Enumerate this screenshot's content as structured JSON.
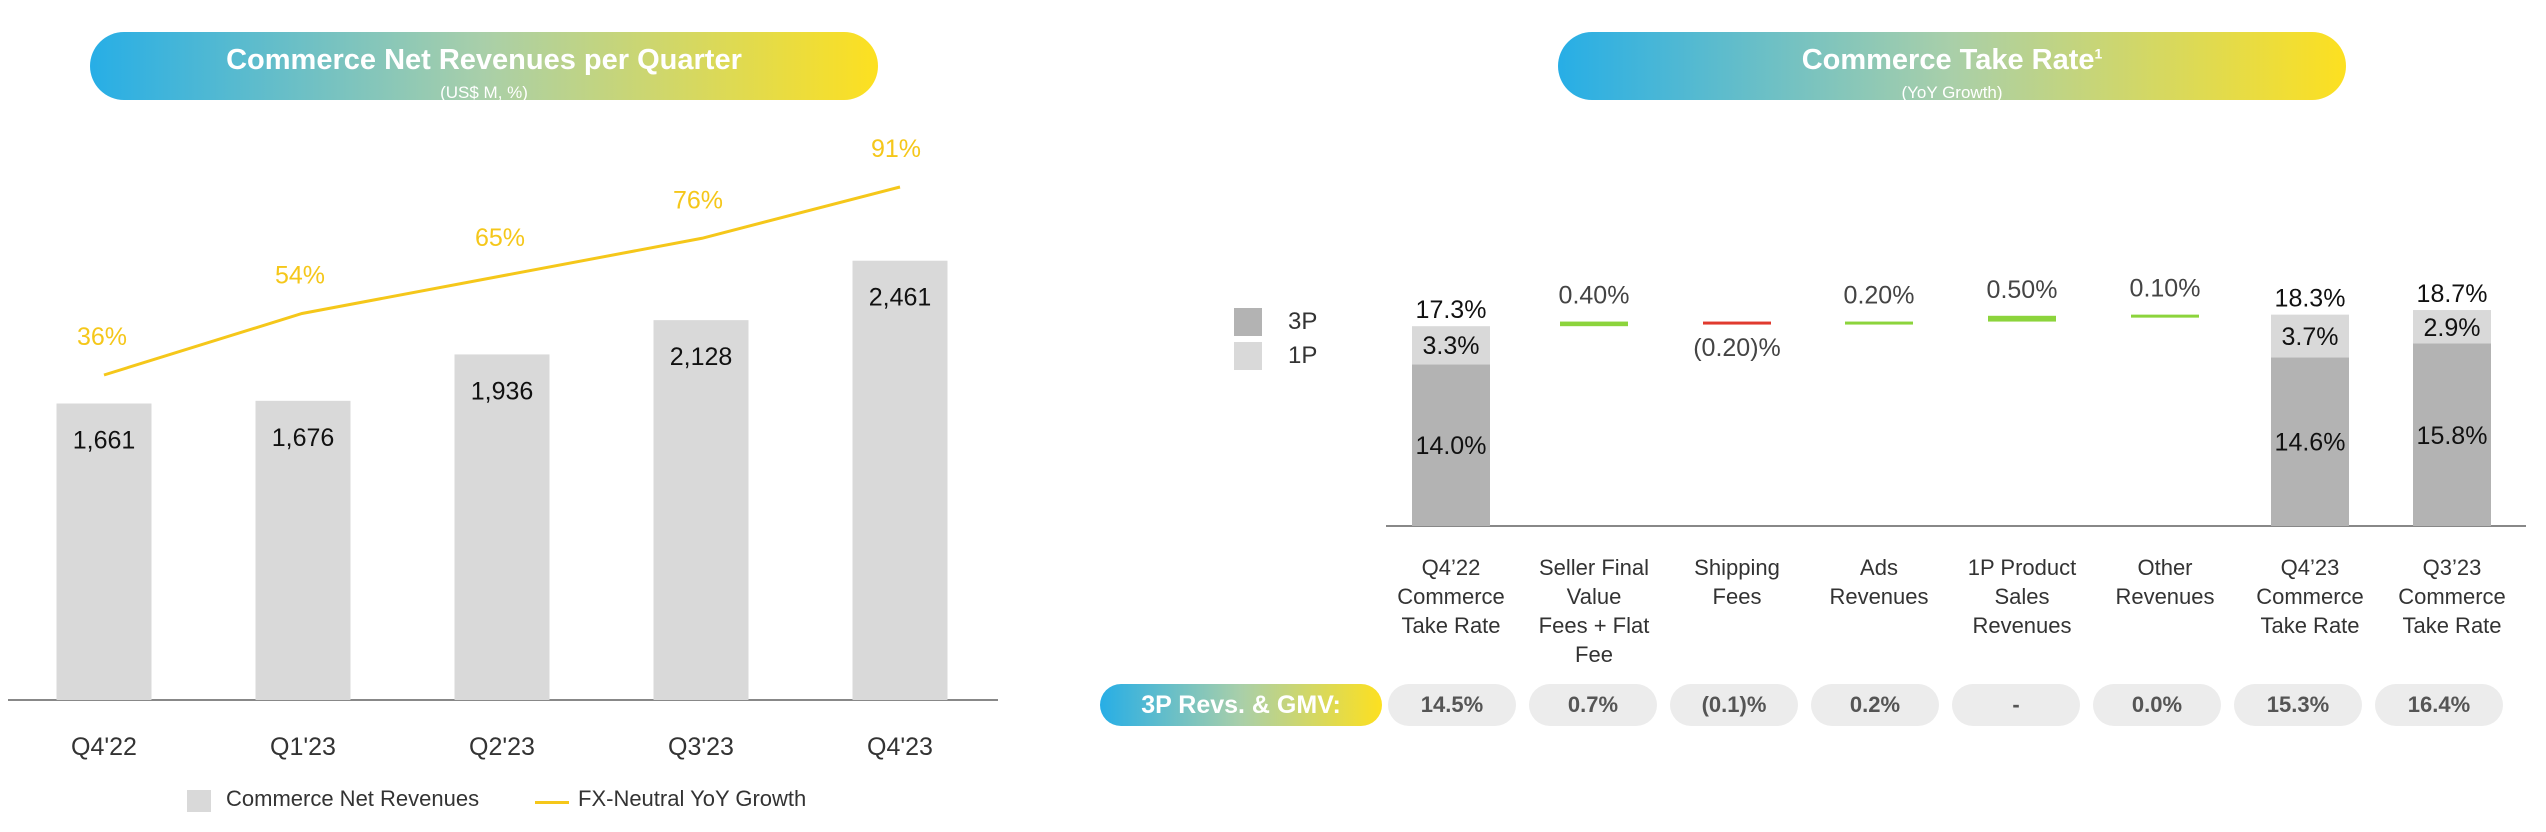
{
  "left_panel": {
    "title": "Commerce Net Revenues per Quarter",
    "subtitle": "(US$ M, %)"
  },
  "right_panel": {
    "title": "Commerce Take Rate",
    "title_sup": "1",
    "subtitle": "(YoY Growth)"
  },
  "gmv_row": {
    "label": "3P Revs. & GMV:",
    "values": [
      "14.5%",
      "0.7%",
      "(0.1)%",
      "0.2%",
      "-",
      "0.0%",
      "15.3%",
      "16.4%"
    ]
  },
  "colors": {
    "bar_gray": "#d9d9d9",
    "line_yellow": "#f5c71a",
    "dark_gray": "#b3b3b3",
    "green": "#8cd43c",
    "red": "#e03a2e"
  },
  "chart_data": [
    {
      "type": "bar",
      "title": "Commerce Net Revenues per Quarter",
      "subtitle": "(US$ M, %)",
      "categories": [
        "Q4'22",
        "Q1'23",
        "Q2'23",
        "Q3'23",
        "Q4'23"
      ],
      "ylim": [
        0,
        2800
      ],
      "series": [
        {
          "name": "Commerce Net Revenues",
          "type": "bar",
          "values": [
            1661,
            1676,
            1936,
            2128,
            2461
          ],
          "labels": [
            "1,661",
            "1,676",
            "1,936",
            "2,128",
            "2,461"
          ]
        },
        {
          "name": "FX-Neutral YoY Growth",
          "type": "line",
          "values": [
            36,
            54,
            65,
            76,
            91
          ],
          "labels": [
            "36%",
            "54%",
            "65%",
            "76%",
            "91%"
          ]
        }
      ],
      "legend": "bottom-center",
      "grid": false
    },
    {
      "type": "bar",
      "subtype": "waterfall",
      "title": "Commerce Take Rate",
      "subtitle": "(YoY Growth)",
      "categories": [
        "Q4’22 Commerce Take Rate",
        "Seller Final Value Fees + Flat Fee",
        "Shipping Fees",
        "Ads Revenues",
        "1P Product Sales Revenues",
        "Other Revenues",
        "Q4’23 Commerce Take Rate",
        "Q3’23 Commerce Take Rate"
      ],
      "category_lines": [
        [
          "Q4’22",
          "Commerce",
          "Take Rate"
        ],
        [
          "Seller Final",
          "Value",
          "Fees + Flat",
          "Fee"
        ],
        [
          "Shipping",
          "Fees"
        ],
        [
          "Ads",
          "Revenues"
        ],
        [
          "1P Product",
          "Sales",
          "Revenues"
        ],
        [
          "Other",
          "Revenues"
        ],
        [
          "Q4’23",
          "Commerce",
          "Take Rate"
        ],
        [
          "Q3’23",
          "Commerce",
          "Take Rate"
        ]
      ],
      "ylim": [
        0,
        19.5
      ],
      "totals": [
        {
          "index": 0,
          "total": 17.3,
          "total_label": "17.3%",
          "3P": 14.0,
          "3P_label": "14.0%",
          "1P": 3.3,
          "1P_label": "3.3%"
        },
        {
          "index": 6,
          "total": 18.3,
          "total_label": "18.3%",
          "3P": 14.6,
          "3P_label": "14.6%",
          "1P": 3.7,
          "1P_label": "3.7%"
        },
        {
          "index": 7,
          "total": 18.7,
          "total_label": "18.7%",
          "3P": 15.8,
          "3P_label": "15.8%",
          "1P": 2.9,
          "1P_label": "2.9%"
        }
      ],
      "changes": [
        {
          "index": 1,
          "value": 0.4,
          "label": "0.40%"
        },
        {
          "index": 2,
          "value": -0.2,
          "label": "(0.20)%"
        },
        {
          "index": 3,
          "value": 0.2,
          "label": "0.20%"
        },
        {
          "index": 4,
          "value": 0.5,
          "label": "0.50%"
        },
        {
          "index": 5,
          "value": 0.1,
          "label": "0.10%"
        }
      ],
      "legend_items": [
        {
          "name": "3P",
          "color": "#b3b3b3"
        },
        {
          "name": "1P",
          "color": "#d9d9d9"
        }
      ],
      "legend": "left",
      "grid": false
    }
  ]
}
